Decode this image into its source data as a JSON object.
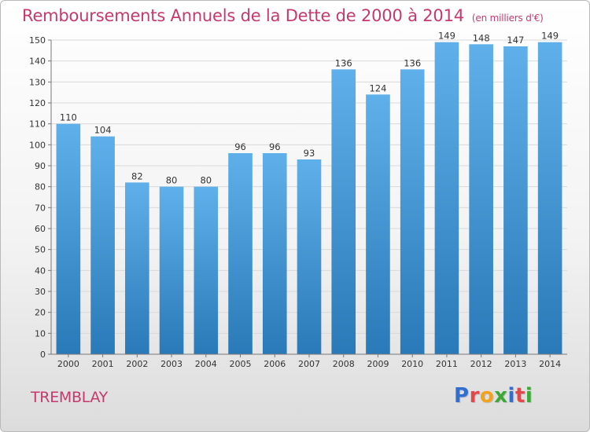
{
  "header": {
    "title": "Remboursements Annuels de la Dette de 2000 à 2014",
    "subtitle": "(en milliers d'€)"
  },
  "footer": {
    "city": "TREMBLAY",
    "logo_text": "Proxiti"
  },
  "colors": {
    "title": "#c6396d",
    "bar_top": "#5fb0ea",
    "bar_bottom": "#2a79b8",
    "logo": [
      "#2f6fd0",
      "#e4474b",
      "#f3a31b",
      "#3aaa35",
      "#2f6fd0",
      "#e4474b",
      "#3aaa35"
    ]
  },
  "chart_data": {
    "type": "bar",
    "title": "Remboursements Annuels de la Dette de 2000 à 2014",
    "categories": [
      "2000",
      "2001",
      "2002",
      "2003",
      "2004",
      "2005",
      "2006",
      "2007",
      "2008",
      "2009",
      "2010",
      "2011",
      "2012",
      "2013",
      "2014"
    ],
    "values": [
      110,
      104,
      82,
      80,
      80,
      96,
      96,
      93,
      136,
      124,
      136,
      149,
      148,
      147,
      149
    ],
    "ylim": [
      0,
      150
    ],
    "yticks": [
      0,
      10,
      20,
      30,
      40,
      50,
      60,
      70,
      80,
      90,
      100,
      110,
      120,
      130,
      140,
      150
    ],
    "grid": true,
    "data_labels": true
  }
}
